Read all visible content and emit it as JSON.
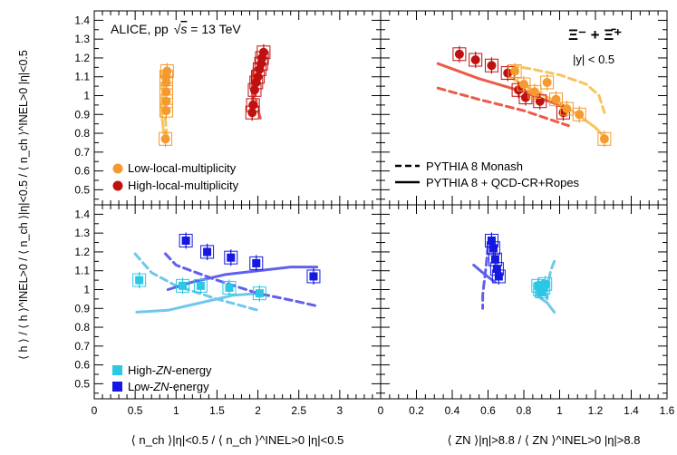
{
  "colors": {
    "xi_low_local": "#f59a2e",
    "xi_high_local": "#c01010",
    "xi_mc_low": "#f7c55c",
    "xi_mc_high": "#ee5a4a",
    "zn_high": "#2bc8e6",
    "zn_low": "#1418e0",
    "zn_mc_high": "#6fc8ec",
    "zn_mc_low": "#6060ee"
  },
  "labels": {
    "experiment": "ALICE, pp",
    "sqrt_s": "s",
    "energy": " = 13 TeV",
    "particle": "Ξ⁻ + Ξ̄⁺",
    "rapidity": "|y| < 0.5",
    "leg_low_local": "Low-local-multiplicity",
    "leg_high_local": "High-local-multiplicity",
    "leg_monash": "PYTHIA 8 Monash",
    "leg_ropes": "PYTHIA 8 + QCD-CR+Ropes",
    "leg_high_zn_a": "High-",
    "leg_high_zn_b": "ZN",
    "leg_high_zn_c": "-energy",
    "leg_low_zn_a": "Low-",
    "leg_low_zn_b": "ZN",
    "leg_low_zn_c": "-energy",
    "ylabel": "⟨ h ⟩ / ⟨ h ⟩^INEL>0 / ⟨ n_ch ⟩|η|<0.5 / ⟨ n_ch ⟩^INEL>0 |η|<0.5",
    "xlabel_left": "⟨ n_ch ⟩|η|<0.5 / ⟨ n_ch ⟩^INEL>0 |η|<0.5",
    "xlabel_right": "⟨ ZN ⟩|η|>8.8 / ⟨ ZN ⟩^INEL>0 |η|>8.8"
  },
  "chart_data": [
    {
      "type": "scatter",
      "panel": "top-left",
      "x_axis": "nch",
      "xlim": [
        0,
        3.5
      ],
      "ylim": [
        0.42,
        1.45
      ],
      "series": [
        {
          "name": "Low-local-multiplicity",
          "style": "data",
          "color": "xi_low_local",
          "marker": "circle",
          "x": [
            0.87,
            0.88,
            0.88,
            0.88,
            0.88,
            0.88,
            0.89
          ],
          "y": [
            0.77,
            0.92,
            0.97,
            1.02,
            1.07,
            1.1,
            1.13
          ]
        },
        {
          "name": "High-local-multiplicity",
          "style": "data",
          "color": "xi_high_local",
          "marker": "circle",
          "x": [
            1.93,
            1.94,
            1.96,
            1.98,
            2.0,
            2.02,
            2.04,
            2.05,
            2.07
          ],
          "y": [
            0.91,
            0.95,
            1.03,
            1.07,
            1.1,
            1.14,
            1.17,
            1.2,
            1.23
          ]
        },
        {
          "name": "PYTHIA 8 Monash",
          "style": "dash",
          "color": "xi_mc_low",
          "x": [
            0.89,
            0.86,
            0.83,
            0.83,
            0.85
          ],
          "y": [
            0.78,
            0.92,
            1.05,
            1.11,
            1.15
          ]
        },
        {
          "name": "PYTHIA 8 + QCD-CR+Ropes",
          "style": "solid",
          "color": "xi_mc_low",
          "x": [
            0.85,
            0.83,
            0.82,
            0.85
          ],
          "y": [
            0.8,
            0.88,
            0.95,
            1.06
          ]
        },
        {
          "name": "PYTHIA 8 Monash",
          "style": "dash",
          "color": "xi_mc_high",
          "x": [
            2.03,
            1.99,
            1.96,
            1.95
          ],
          "y": [
            0.88,
            0.94,
            1.03,
            1.14
          ]
        },
        {
          "name": "PYTHIA 8 + QCD-CR+Ropes",
          "style": "solid",
          "color": "xi_mc_high",
          "x": [
            1.94,
            1.93,
            1.93,
            1.95
          ],
          "y": [
            0.94,
            1.02,
            1.1,
            1.14
          ]
        }
      ]
    },
    {
      "type": "scatter",
      "panel": "top-right",
      "x_axis": "zn",
      "xlim": [
        0,
        1.6
      ],
      "ylim": [
        0.42,
        1.45
      ],
      "series": [
        {
          "name": "High-local-multiplicity",
          "style": "data",
          "color": "xi_high_local",
          "marker": "circle",
          "x": [
            0.44,
            0.53,
            0.62,
            0.71,
            0.77,
            0.81,
            0.89,
            1.02
          ],
          "y": [
            1.22,
            1.19,
            1.16,
            1.12,
            1.03,
            0.99,
            0.97,
            0.91
          ]
        },
        {
          "name": "Low-local-multiplicity",
          "style": "data",
          "color": "xi_low_local",
          "marker": "circle",
          "x": [
            0.75,
            0.8,
            0.86,
            0.93,
            0.98,
            1.04,
            1.11,
            1.25
          ],
          "y": [
            1.13,
            1.06,
            1.02,
            1.07,
            0.98,
            0.93,
            0.9,
            0.77
          ]
        },
        {
          "name": "PYTHIA 8 Monash",
          "style": "dash",
          "color": "xi_mc_high",
          "x": [
            0.32,
            0.55,
            0.8,
            1.05
          ],
          "y": [
            1.04,
            0.98,
            0.92,
            0.84
          ]
        },
        {
          "name": "PYTHIA 8 + QCD-CR+Ropes",
          "style": "solid",
          "color": "xi_mc_high",
          "x": [
            0.32,
            0.55,
            0.8,
            1.05
          ],
          "y": [
            1.17,
            1.09,
            1.02,
            0.93
          ]
        },
        {
          "name": "PYTHIA 8 Monash",
          "style": "dash",
          "color": "xi_mc_low",
          "x": [
            0.73,
            0.85,
            1.0,
            1.15,
            1.22,
            1.25
          ],
          "y": [
            1.16,
            1.14,
            1.11,
            1.06,
            1.0,
            0.91
          ]
        },
        {
          "name": "PYTHIA 8 + QCD-CR+Ropes",
          "style": "solid",
          "color": "xi_mc_low",
          "x": [
            0.7,
            0.85,
            1.0,
            1.1,
            1.2,
            1.25
          ],
          "y": [
            1.11,
            1.03,
            0.96,
            0.9,
            0.83,
            0.78
          ]
        }
      ]
    },
    {
      "type": "scatter",
      "panel": "bottom-left",
      "x_axis": "nch",
      "xlim": [
        0,
        3.5
      ],
      "ylim": [
        0.42,
        1.45
      ],
      "series": [
        {
          "name": "High-ZN-energy",
          "style": "data",
          "color": "zn_high",
          "marker": "square",
          "x": [
            0.55,
            1.08,
            1.3,
            1.65,
            2.02
          ],
          "y": [
            1.05,
            1.02,
            1.02,
            1.01,
            0.98
          ]
        },
        {
          "name": "Low-ZN-energy",
          "style": "data",
          "color": "zn_low",
          "marker": "square",
          "x": [
            1.12,
            1.38,
            1.67,
            1.98,
            2.68
          ],
          "y": [
            1.26,
            1.2,
            1.17,
            1.14,
            1.07
          ]
        },
        {
          "name": "PYTHIA 8 Monash",
          "style": "dash",
          "color": "zn_mc_high",
          "x": [
            0.5,
            0.7,
            1.0,
            1.5,
            2.0
          ],
          "y": [
            1.19,
            1.09,
            1.02,
            0.95,
            0.89
          ]
        },
        {
          "name": "PYTHIA 8 + QCD-CR+Ropes",
          "style": "solid",
          "color": "zn_mc_high",
          "x": [
            0.52,
            0.9,
            1.3,
            1.7,
            2.0
          ],
          "y": [
            0.88,
            0.89,
            0.93,
            0.97,
            0.98
          ]
        },
        {
          "name": "PYTHIA 8 Monash",
          "style": "dash",
          "color": "zn_mc_low",
          "x": [
            0.87,
            1.0,
            1.5,
            2.0,
            2.45,
            2.75
          ],
          "y": [
            1.19,
            1.13,
            1.05,
            0.98,
            0.94,
            0.91
          ]
        },
        {
          "name": "PYTHIA 8 + QCD-CR+Ropes",
          "style": "solid",
          "color": "zn_mc_low",
          "x": [
            0.9,
            1.2,
            1.6,
            2.0,
            2.4,
            2.72
          ],
          "y": [
            1.0,
            1.04,
            1.08,
            1.1,
            1.12,
            1.12
          ]
        }
      ]
    },
    {
      "type": "scatter",
      "panel": "bottom-right",
      "x_axis": "zn",
      "xlim": [
        0,
        1.6
      ],
      "ylim": [
        0.42,
        1.45
      ],
      "series": [
        {
          "name": "High-ZN-energy",
          "style": "data",
          "color": "zn_high",
          "marker": "square",
          "x": [
            0.88,
            0.89,
            0.9,
            0.91,
            0.92
          ],
          "y": [
            1.02,
            1.0,
            0.99,
            1.01,
            1.03
          ]
        },
        {
          "name": "Low-ZN-energy",
          "style": "data",
          "color": "zn_low",
          "marker": "square",
          "x": [
            0.62,
            0.63,
            0.64,
            0.65,
            0.66
          ],
          "y": [
            1.26,
            1.22,
            1.16,
            1.11,
            1.07
          ]
        },
        {
          "name": "PYTHIA 8 Monash",
          "style": "dash",
          "color": "zn_mc_high",
          "x": [
            0.97,
            0.95,
            0.94,
            0.92,
            0.93
          ],
          "y": [
            1.15,
            1.1,
            1.05,
            1.0,
            0.95
          ]
        },
        {
          "name": "PYTHIA 8 + QCD-CR+Ropes",
          "style": "solid",
          "color": "zn_mc_high",
          "x": [
            0.94,
            0.9,
            0.87,
            0.93,
            0.97
          ],
          "y": [
            1.03,
            1.0,
            0.97,
            0.93,
            0.88
          ]
        },
        {
          "name": "PYTHIA 8 Monash",
          "style": "dash",
          "color": "zn_mc_low",
          "x": [
            0.6,
            0.59,
            0.58,
            0.57,
            0.57
          ],
          "y": [
            1.23,
            1.13,
            1.05,
            0.97,
            0.9
          ]
        },
        {
          "name": "PYTHIA 8 + QCD-CR+Ropes",
          "style": "solid",
          "color": "zn_mc_low",
          "x": [
            0.52,
            0.57,
            0.61,
            0.64
          ],
          "y": [
            1.13,
            1.09,
            1.06,
            1.04
          ]
        }
      ]
    }
  ],
  "axes": {
    "y_ticks": [
      "0.5",
      "0.6",
      "0.7",
      "0.8",
      "0.9",
      "1",
      "1.1",
      "1.2",
      "1.3",
      "1.4"
    ],
    "y_tick_values": [
      0.5,
      0.6,
      0.7,
      0.8,
      0.9,
      1.0,
      1.1,
      1.2,
      1.3,
      1.4
    ],
    "x_left_ticks": [
      "0",
      "0.5",
      "1",
      "1.5",
      "2",
      "2.5",
      "3"
    ],
    "x_left_tick_values": [
      0,
      0.5,
      1,
      1.5,
      2,
      2.5,
      3
    ],
    "x_right_ticks": [
      "0",
      "0.2",
      "0.4",
      "0.6",
      "0.8",
      "1",
      "1.2",
      "1.4",
      "1.6"
    ],
    "x_right_tick_values": [
      0,
      0.2,
      0.4,
      0.6,
      0.8,
      1.0,
      1.2,
      1.4,
      1.6
    ]
  }
}
